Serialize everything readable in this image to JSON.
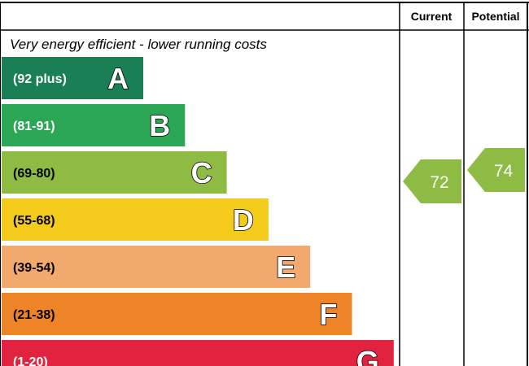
{
  "chart_data": {
    "type": "bar",
    "subtitle": "Very energy efficient - lower running costs",
    "columns": [
      "Current",
      "Potential"
    ],
    "bands": [
      {
        "letter": "A",
        "range": "(92 plus)",
        "color": "#1a7f55"
      },
      {
        "letter": "B",
        "range": "(81-91)",
        "color": "#2aa655"
      },
      {
        "letter": "C",
        "range": "(69-80)",
        "color": "#8dbb43"
      },
      {
        "letter": "D",
        "range": "(55-68)",
        "color": "#f5cb1b"
      },
      {
        "letter": "E",
        "range": "(39-54)",
        "color": "#f1a96d"
      },
      {
        "letter": "F",
        "range": "(21-38)",
        "color": "#ee8428"
      },
      {
        "letter": "G",
        "range": "(1-20)",
        "color": "#e2233f"
      }
    ],
    "ratings": {
      "current": {
        "value": 72,
        "band": "C",
        "color": "#8dbb43"
      },
      "potential": {
        "value": 74,
        "band": "C",
        "color": "#8dbb43"
      }
    }
  }
}
